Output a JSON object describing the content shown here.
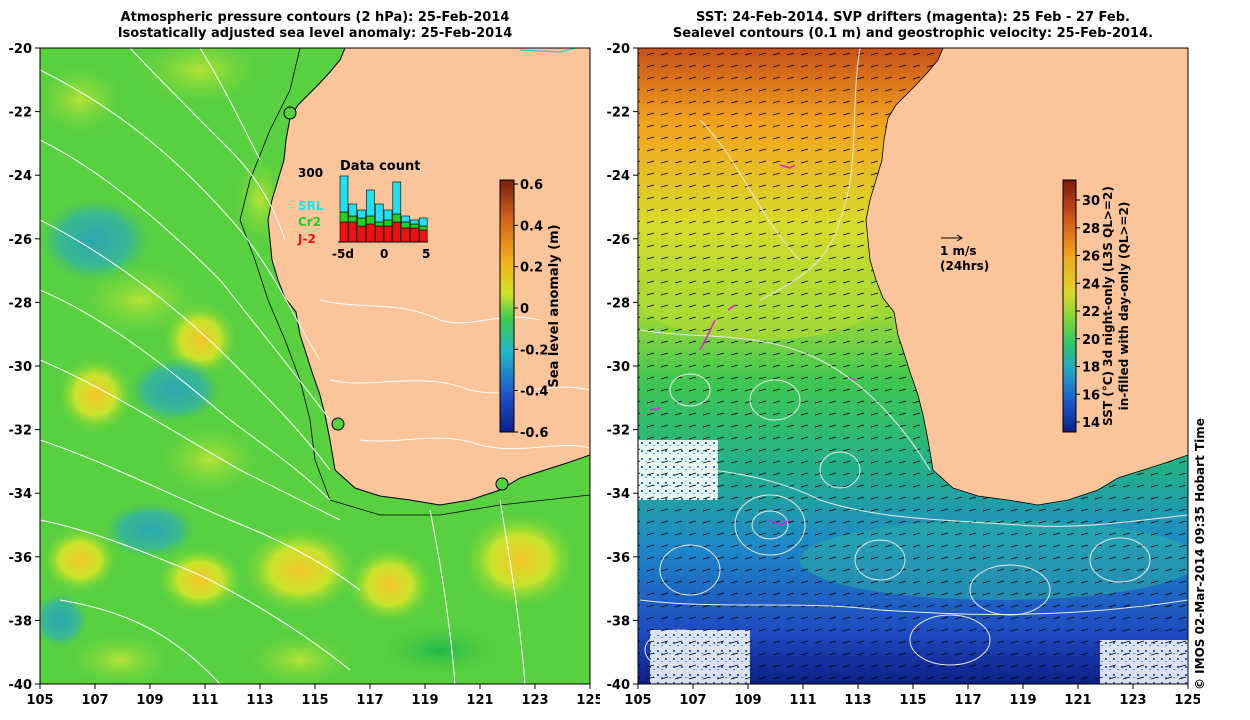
{
  "left_panel": {
    "title_line1": "Atmospheric pressure contours (2 hPa): 25-Feb-2014",
    "title_line2": "Isostatically adjusted sea level anomaly: 25-Feb-2014",
    "colorbar": {
      "label": "Sea level anomaly (m)",
      "ticks": [
        "0.6",
        "0.4",
        "0.2",
        "0",
        "-0.2",
        "-0.4",
        "-0.6"
      ],
      "colors": [
        "#7a1f0e",
        "#d2611b",
        "#f2b21c",
        "#cfe22a",
        "#3ec94b",
        "#25b6c8",
        "#1f56c8",
        "#0a1f8c"
      ]
    },
    "inset": {
      "title": "Data count",
      "ymax_label": "300",
      "legend": [
        {
          "label": "SRL",
          "color": "#22e0f0"
        },
        {
          "label": "Cr2",
          "color": "#22d022"
        },
        {
          "label": "J-2",
          "color": "#ee1111"
        }
      ],
      "x_ticks": [
        "-5d",
        "0",
        "5"
      ]
    }
  },
  "right_panel": {
    "title_line1": "SST: 24-Feb-2014. SVP drifters (magenta): 25 Feb - 27 Feb.",
    "title_line2": "Sealevel contours (0.1 m) and geostrophic velocity: 25-Feb-2014.",
    "colorbar": {
      "label_line1": "SST (°C) 3d night-only (L3S QL>=2)",
      "label_line2": "in-filled with day-only (QL>=2)",
      "ticks": [
        "30",
        "28",
        "26",
        "24",
        "22",
        "20",
        "18",
        "16",
        "14"
      ],
      "colors": [
        "#7a1a0e",
        "#cf5418",
        "#f2a41e",
        "#d8d82a",
        "#7fd63a",
        "#2ec66a",
        "#22a8c4",
        "#1e5ac8",
        "#0e1e86"
      ]
    },
    "scale_arrow_label": "1 m/s",
    "scale_arrow_sub": "(24hrs)"
  },
  "axes": {
    "y_ticks": [
      "-20",
      "-22",
      "-24",
      "-26",
      "-28",
      "-30",
      "-32",
      "-34",
      "-36",
      "-38",
      "-40"
    ],
    "x_ticks": [
      "105",
      "107",
      "109",
      "111",
      "113",
      "115",
      "117",
      "119",
      "121",
      "123",
      "125"
    ]
  },
  "credit": "© IMOS 02-Mar-2014 09:35 Hobart Time",
  "colors": {
    "land": "#fac59a",
    "sla_ocean": "#55d040",
    "contour": "#ffffff",
    "coastline": "#000000"
  }
}
